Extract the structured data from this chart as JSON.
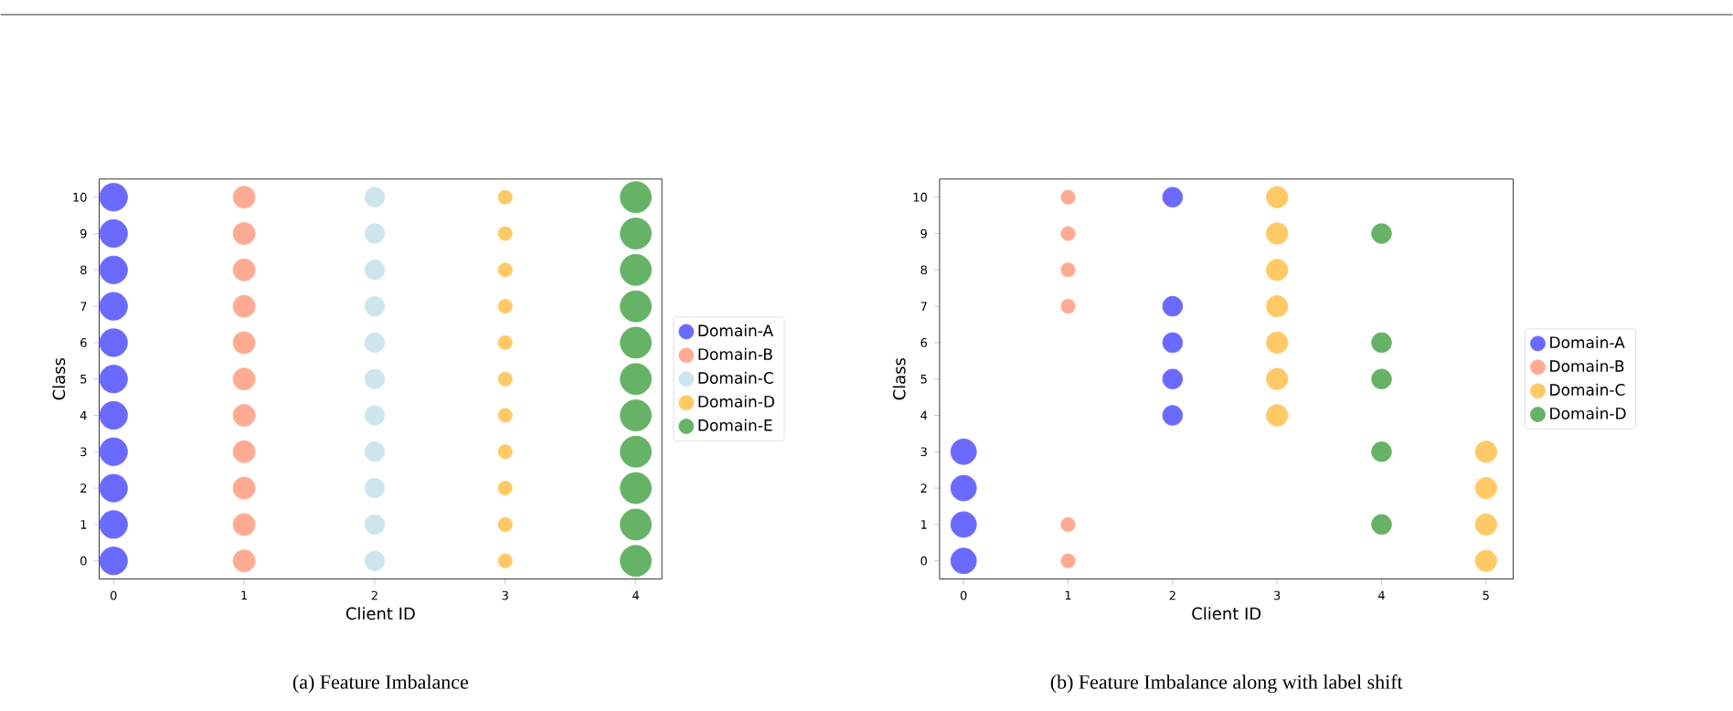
{
  "chart_data": [
    {
      "type": "bubble",
      "xlabel": "Client ID",
      "ylabel": "Class",
      "xlim": [
        -0.11,
        4.2
      ],
      "xticks": [
        0,
        1,
        2,
        3,
        4
      ],
      "ylim": [
        -0.5,
        10.5
      ],
      "yticks": [
        0,
        1,
        2,
        3,
        4,
        5,
        6,
        7,
        8,
        9,
        10
      ],
      "legend": "right",
      "series": [
        {
          "name": "Domain-A",
          "color": "#6a6aff",
          "x": [
            0,
            0,
            0,
            0,
            0,
            0,
            0,
            0,
            0,
            0,
            0
          ],
          "values": [
            0,
            1,
            2,
            3,
            4,
            5,
            6,
            7,
            8,
            9,
            10
          ],
          "sizes": [
            0.8,
            0.8,
            0.8,
            0.8,
            0.8,
            0.8,
            0.8,
            0.8,
            0.8,
            0.8,
            0.8
          ]
        },
        {
          "name": "Domain-B",
          "color": "#ffab93",
          "x": [
            1,
            1,
            1,
            1,
            1,
            1,
            1,
            1,
            1,
            1,
            1
          ],
          "values": [
            0,
            1,
            2,
            3,
            4,
            5,
            6,
            7,
            8,
            9,
            10
          ],
          "sizes": [
            0.5,
            0.5,
            0.5,
            0.5,
            0.5,
            0.5,
            0.5,
            0.5,
            0.5,
            0.5,
            0.5
          ]
        },
        {
          "name": "Domain-C",
          "color": "#cde6ee",
          "x": [
            2,
            2,
            2,
            2,
            2,
            2,
            2,
            2,
            2,
            2,
            2
          ],
          "values": [
            0,
            1,
            2,
            3,
            4,
            5,
            6,
            7,
            8,
            9,
            10
          ],
          "sizes": [
            0.4,
            0.4,
            0.4,
            0.4,
            0.4,
            0.4,
            0.4,
            0.4,
            0.4,
            0.4,
            0.4
          ]
        },
        {
          "name": "Domain-D",
          "color": "#ffc966",
          "x": [
            3,
            3,
            3,
            3,
            3,
            3,
            3,
            3,
            3,
            3,
            3
          ],
          "values": [
            0,
            1,
            2,
            3,
            4,
            5,
            6,
            7,
            8,
            9,
            10
          ],
          "sizes": [
            0.2,
            0.2,
            0.2,
            0.2,
            0.2,
            0.2,
            0.2,
            0.2,
            0.2,
            0.2,
            0.2
          ]
        },
        {
          "name": "Domain-E",
          "color": "#66b266",
          "x": [
            4,
            4,
            4,
            4,
            4,
            4,
            4,
            4,
            4,
            4,
            4
          ],
          "values": [
            0,
            1,
            2,
            3,
            4,
            5,
            6,
            7,
            8,
            9,
            10
          ],
          "sizes": [
            1,
            1,
            1,
            1,
            1,
            1,
            1,
            1,
            1,
            1,
            1
          ]
        }
      ],
      "annotations": [
        "(a) Feature Imbalance"
      ]
    },
    {
      "type": "bubble",
      "xlabel": "Client ID",
      "ylabel": "Class",
      "xlim": [
        -0.23,
        5.26
      ],
      "xticks": [
        0,
        1,
        2,
        3,
        4,
        5
      ],
      "ylim": [
        -0.5,
        10.5
      ],
      "yticks": [
        0,
        1,
        2,
        3,
        4,
        5,
        6,
        7,
        8,
        9,
        10
      ],
      "legend": "right",
      "series": [
        {
          "name": "Domain-A",
          "color": "#6a6aff",
          "x": [
            0,
            0,
            0,
            0,
            2,
            2,
            2,
            2,
            2
          ],
          "values": [
            0,
            1,
            2,
            3,
            4,
            5,
            6,
            7,
            10
          ],
          "sizes": [
            1,
            1,
            1,
            1,
            0.6,
            0.6,
            0.6,
            0.6,
            0.6
          ]
        },
        {
          "name": "Domain-B",
          "color": "#ffab93",
          "x": [
            1,
            1,
            1,
            1,
            1,
            1
          ],
          "values": [
            0,
            1,
            7,
            8,
            9,
            10
          ],
          "sizes": [
            0.3,
            0.3,
            0.3,
            0.3,
            0.3,
            0.3
          ]
        },
        {
          "name": "Domain-C",
          "color": "#ffc966",
          "x": [
            3,
            3,
            3,
            3,
            3,
            3,
            3,
            5,
            5,
            5,
            5
          ],
          "values": [
            4,
            5,
            6,
            7,
            8,
            9,
            10,
            0,
            1,
            2,
            3
          ],
          "sizes": [
            0.7,
            0.7,
            0.7,
            0.7,
            0.7,
            0.7,
            0.7,
            0.7,
            0.7,
            0.7,
            0.7
          ]
        },
        {
          "name": "Domain-D",
          "color": "#66b266",
          "x": [
            4,
            4,
            4,
            4,
            4
          ],
          "values": [
            1,
            3,
            5,
            6,
            9
          ],
          "sizes": [
            0.6,
            0.6,
            0.6,
            0.6,
            0.6
          ]
        }
      ],
      "annotations": [
        "(b) Feature Imbalance along with label shift"
      ]
    }
  ]
}
